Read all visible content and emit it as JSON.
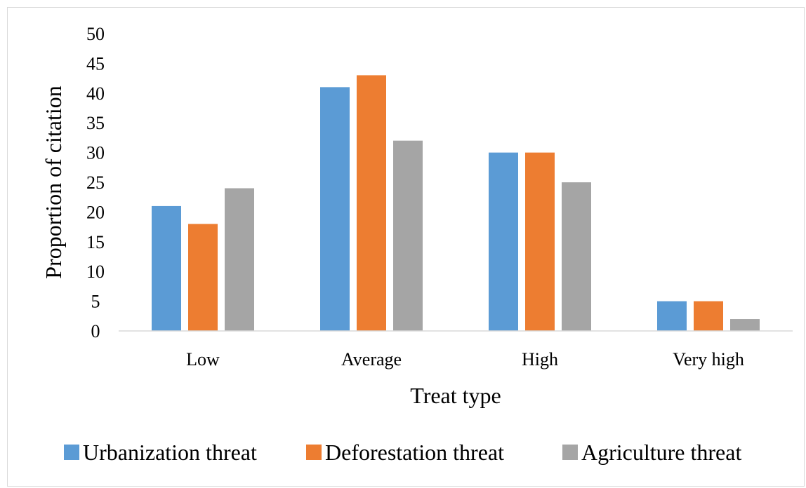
{
  "chart_data": {
    "type": "bar",
    "title": "",
    "xlabel": "Treat type",
    "ylabel": "Proportion of citation",
    "ylim": [
      0,
      50
    ],
    "ytick_step": 5,
    "grid": false,
    "legend_position": "bottom",
    "categories": [
      "Low",
      "Average",
      "High",
      "Very high"
    ],
    "series": [
      {
        "name": "Urbanization threat",
        "color": "#5b9bd5",
        "values": [
          21,
          41,
          30,
          5
        ]
      },
      {
        "name": "Deforestation threat",
        "color": "#ed7d31",
        "values": [
          18,
          43,
          30,
          5
        ]
      },
      {
        "name": "Agriculture threat",
        "color": "#a5a5a5",
        "values": [
          24,
          32,
          25,
          2
        ]
      }
    ]
  }
}
